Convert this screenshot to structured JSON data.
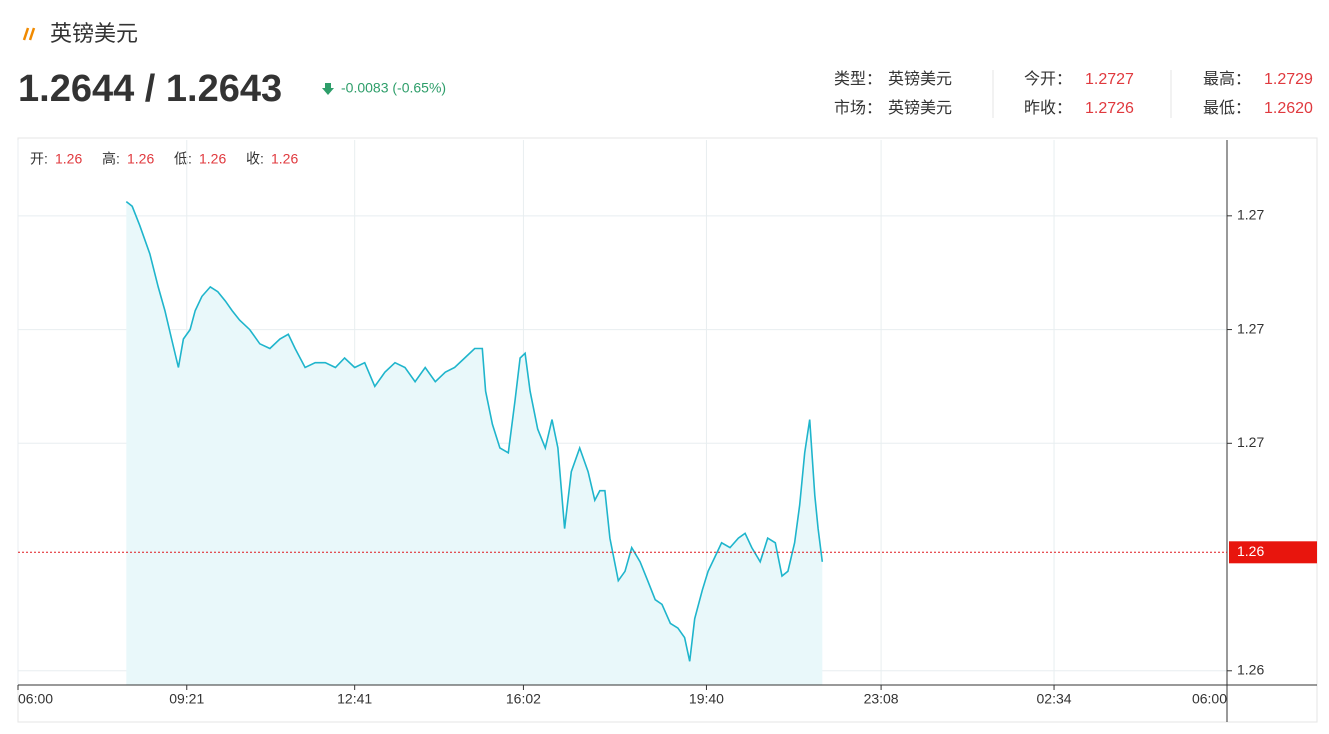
{
  "header": {
    "title": "英镑美元",
    "price": "1.2644 / 1.2643",
    "change": "-0.0083 (-0.65%)",
    "info": [
      [
        {
          "label": "类型：",
          "value": "英镑美元"
        },
        {
          "label": "今开：",
          "value": "1.2727"
        },
        {
          "label": "最高：",
          "value": "1.2729"
        }
      ],
      [
        {
          "label": "市场：",
          "value": "英镑美元"
        },
        {
          "label": "昨收：",
          "value": "1.2726"
        },
        {
          "label": "最低：",
          "value": "1.2620"
        }
      ]
    ]
  },
  "ohlc": [
    {
      "label": "开:",
      "value": "1.26"
    },
    {
      "label": "高:",
      "value": "1.26"
    },
    {
      "label": "低:",
      "value": "1.26"
    },
    {
      "label": "收:",
      "value": "1.26"
    }
  ],
  "chart_data": {
    "type": "area",
    "color": "#1fb5cc",
    "fill": "#e9f8fa",
    "grid": true,
    "x": [
      129,
      136,
      145,
      157,
      167,
      175,
      183,
      191,
      197,
      205,
      211,
      219,
      229,
      238,
      247,
      255,
      264,
      276,
      288,
      300,
      312,
      322,
      330,
      342,
      354,
      366,
      378,
      389,
      401,
      413,
      425,
      437,
      449,
      461,
      473,
      485,
      497,
      509,
      520,
      532,
      544,
      553,
      557,
      565,
      574,
      584,
      592,
      598,
      604,
      610,
      619,
      628,
      636,
      643,
      651,
      659,
      669,
      679,
      687,
      693,
      699,
      705,
      715,
      723,
      731,
      741,
      750,
      759,
      767,
      777,
      786,
      794,
      800,
      806,
      815,
      822,
      830,
      838,
      848,
      858,
      866,
      874,
      884,
      893,
      902,
      910,
      917,
      925,
      931,
      937,
      943,
      949,
      953,
      958
    ],
    "values": [
      1.2718,
      1.2717,
      1.2713,
      1.2707,
      1.27,
      1.2695,
      1.2689,
      1.2683,
      1.2689,
      1.2691,
      1.2695,
      1.2698,
      1.27,
      1.2699,
      1.2697,
      1.2695,
      1.2693,
      1.2691,
      1.2688,
      1.2687,
      1.2689,
      1.269,
      1.2687,
      1.2683,
      1.2684,
      1.2684,
      1.2683,
      1.2685,
      1.2683,
      1.2684,
      1.2679,
      1.2682,
      1.2684,
      1.2683,
      1.268,
      1.2683,
      1.268,
      1.2682,
      1.2683,
      1.2685,
      1.2687,
      1.2687,
      1.2678,
      1.2671,
      1.2666,
      1.2665,
      1.2676,
      1.2685,
      1.2686,
      1.2678,
      1.267,
      1.2666,
      1.2672,
      1.2666,
      1.2649,
      1.2661,
      1.2666,
      1.2661,
      1.2655,
      1.2657,
      1.2657,
      1.2647,
      1.2638,
      1.264,
      1.2645,
      1.2642,
      1.2638,
      1.2634,
      1.2633,
      1.2629,
      1.2628,
      1.2626,
      1.2621,
      1.263,
      1.2636,
      1.264,
      1.2643,
      1.2646,
      1.2645,
      1.2647,
      1.2648,
      1.2645,
      1.2642,
      1.2647,
      1.2646,
      1.2639,
      1.264,
      1.2646,
      1.2654,
      1.2665,
      1.2672,
      1.2656,
      1.2649,
      1.2642
    ],
    "xlim": [
      0,
      1440
    ],
    "xticks": [
      {
        "value": 0,
        "label": "06:00"
      },
      {
        "value": 201,
        "label": "09:21"
      },
      {
        "value": 401,
        "label": "12:41"
      },
      {
        "value": 602,
        "label": "16:02"
      },
      {
        "value": 820,
        "label": "19:40"
      },
      {
        "value": 1028,
        "label": "23:08"
      },
      {
        "value": 1234,
        "label": "02:34"
      },
      {
        "value": 1440,
        "label": "06:00"
      }
    ],
    "ylim": [
      1.2616,
      1.2731
    ],
    "yticks": [
      {
        "value": 1.2715,
        "label": "1.27"
      },
      {
        "value": 1.2691,
        "label": "1.27"
      },
      {
        "value": 1.2667,
        "label": "1.27"
      },
      {
        "value": 1.2619,
        "label": "1.26"
      }
    ],
    "current": {
      "value": 1.2644,
      "label": "1.26"
    }
  }
}
